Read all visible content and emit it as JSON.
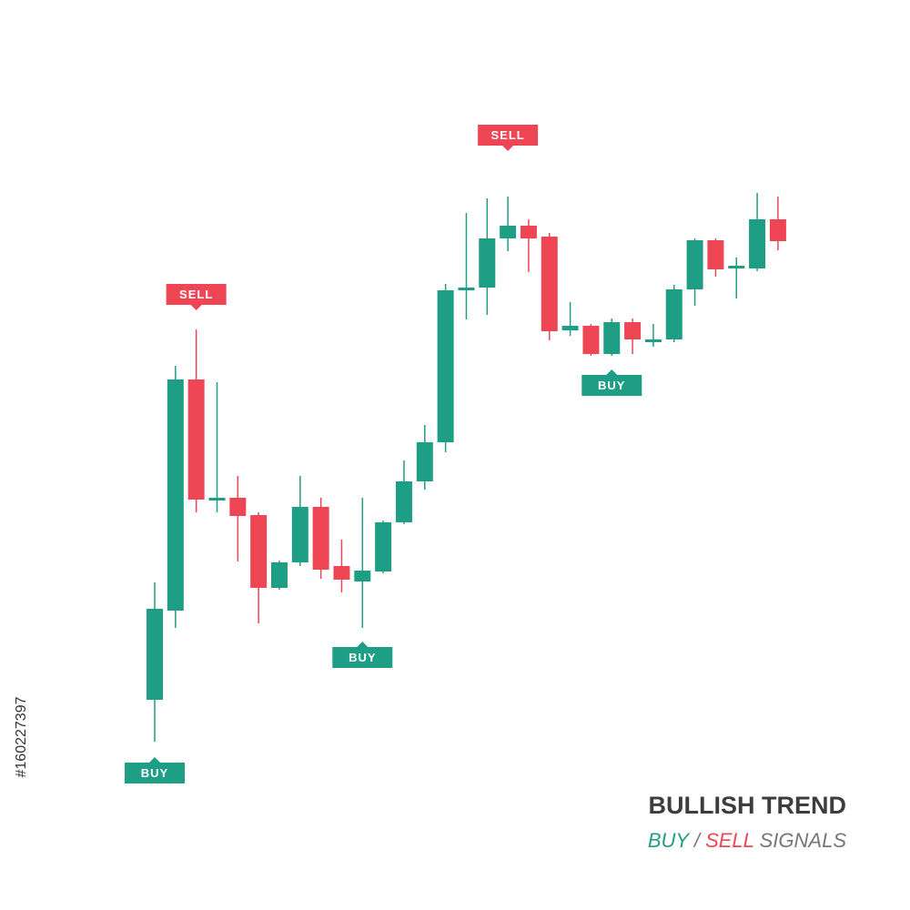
{
  "chart_data": {
    "type": "candlestick",
    "title": "BULLISH TREND",
    "subtitle": {
      "buy": "BUY",
      "separator": "/",
      "sell": "SELL",
      "rest": "SIGNALS"
    },
    "side_text": "#160227397",
    "up_color": "#1f9e86",
    "down_color": "#ef4655",
    "ylim": [
      150,
      850
    ],
    "open": [
      231,
      329,
      583,
      450,
      453,
      434,
      354,
      382,
      443,
      378,
      361,
      372,
      426,
      471,
      514,
      681,
      684,
      738,
      752,
      740,
      637,
      642,
      611,
      646,
      624,
      627,
      682,
      736,
      705,
      705,
      759
    ],
    "high": [
      360,
      598,
      638,
      580,
      477,
      437,
      384,
      477,
      453,
      407,
      453,
      428,
      494,
      533,
      688,
      766,
      782,
      784,
      759,
      744,
      668,
      644,
      650,
      650,
      644,
      687,
      738,
      738,
      717,
      788,
      784
    ],
    "low": [
      185,
      310,
      437,
      437,
      383,
      315,
      352,
      378,
      364,
      349,
      310,
      370,
      424,
      462,
      503,
      649,
      654,
      724,
      701,
      626,
      631,
      609,
      609,
      611,
      619,
      624,
      664,
      696,
      672,
      702,
      725
    ],
    "close": [
      331,
      583,
      451,
      453,
      433,
      354,
      382,
      443,
      374,
      363,
      373,
      426,
      471,
      514,
      681,
      684,
      738,
      752,
      738,
      636,
      642,
      611,
      646,
      627,
      627,
      682,
      736,
      704,
      708,
      759,
      735
    ],
    "signals": [
      "BUY",
      "SELL",
      "BUY",
      "SELL",
      "BUY"
    ]
  }
}
